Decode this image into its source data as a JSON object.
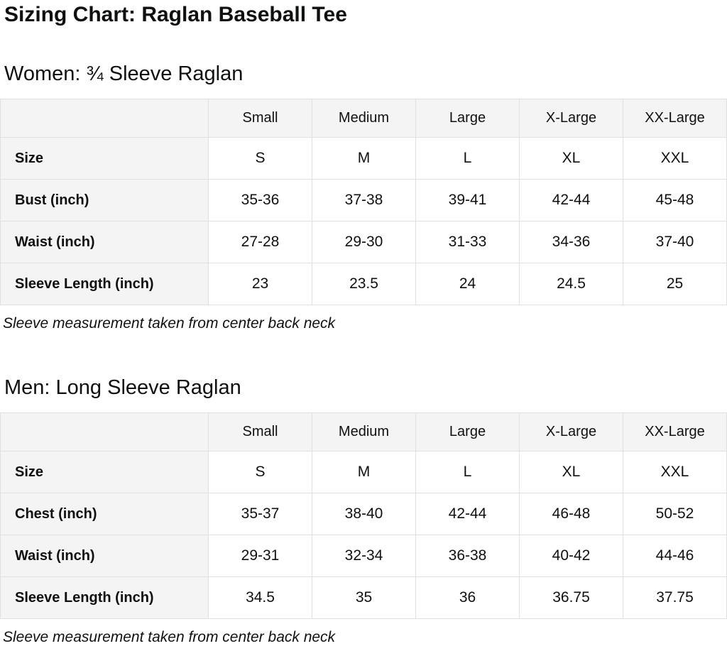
{
  "page": {
    "title": "Sizing Chart: Raglan Baseball Tee"
  },
  "sections": [
    {
      "heading": "Women: ¾ Sleeve Raglan",
      "note": "Sleeve measurement taken from center back neck",
      "table": {
        "corner": "",
        "columns": [
          "Small",
          "Medium",
          "Large",
          "X-Large",
          "XX-Large"
        ],
        "rows": [
          {
            "label": "Size",
            "values": [
              "S",
              "M",
              "L",
              "XL",
              "XXL"
            ]
          },
          {
            "label": "Bust (inch)",
            "values": [
              "35-36",
              "37-38",
              "39-41",
              "42-44",
              "45-48"
            ]
          },
          {
            "label": "Waist (inch)",
            "values": [
              "27-28",
              "29-30",
              "31-33",
              "34-36",
              "37-40"
            ]
          },
          {
            "label": "Sleeve Length (inch)",
            "values": [
              "23",
              "23.5",
              "24",
              "24.5",
              "25"
            ]
          }
        ]
      }
    },
    {
      "heading": "Men: Long Sleeve Raglan",
      "note": "Sleeve measurement taken from center back neck",
      "table": {
        "corner": "",
        "columns": [
          "Small",
          "Medium",
          "Large",
          "X-Large",
          "XX-Large"
        ],
        "rows": [
          {
            "label": "Size",
            "values": [
              "S",
              "M",
              "L",
              "XL",
              "XXL"
            ]
          },
          {
            "label": "Chest (inch)",
            "values": [
              "35-37",
              "38-40",
              "42-44",
              "46-48",
              "50-52"
            ]
          },
          {
            "label": "Waist (inch)",
            "values": [
              "29-31",
              "32-34",
              "36-38",
              "40-42",
              "44-46"
            ]
          },
          {
            "label": "Sleeve Length (inch)",
            "values": [
              "34.5",
              "35",
              "36",
              "36.75",
              "37.75"
            ]
          }
        ]
      }
    }
  ]
}
